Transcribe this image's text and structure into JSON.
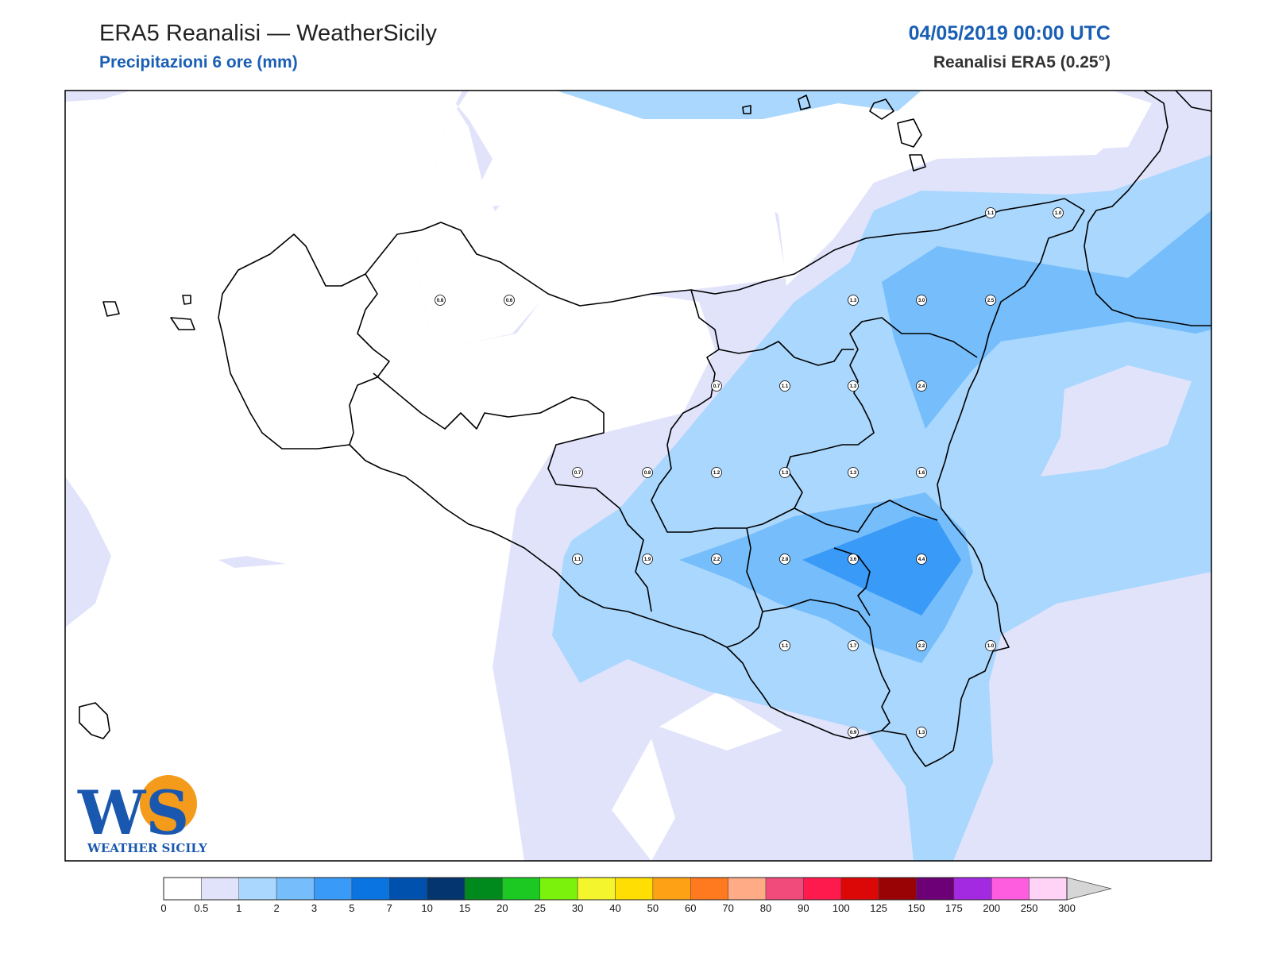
{
  "header": {
    "title": "ERA5 Reanalisi — WeatherSicily",
    "subtitle": "Precipitazioni 6 ore (mm)",
    "datetime": "04/05/2019 00:00 UTC",
    "source": "Reanalisi ERA5 (0.25°)"
  },
  "logo": {
    "text": "WEATHER SICILY",
    "letters": "WS"
  },
  "colors": {
    "accent": "#1a5fb4",
    "land_outline": "#000000"
  },
  "colorbar": {
    "labels": [
      "0",
      "0.5",
      "1",
      "2",
      "3",
      "5",
      "7",
      "10",
      "15",
      "20",
      "25",
      "30",
      "40",
      "50",
      "60",
      "70",
      "80",
      "90",
      "100",
      "125",
      "150",
      "175",
      "200",
      "250",
      "300"
    ],
    "colors": [
      "#ffffff",
      "#e1e3fb",
      "#aad7fd",
      "#76bdfb",
      "#3a9af7",
      "#0a74e0",
      "#0050ad",
      "#04356f",
      "#008a1e",
      "#1bc922",
      "#7bf20b",
      "#f4f52c",
      "#ffdf03",
      "#ffa114",
      "#ff7a1f",
      "#ffab86",
      "#f04b7a",
      "#ff1a4e",
      "#dc0707",
      "#9a0305",
      "#6e0077",
      "#a32ae0",
      "#ff5ddf",
      "#ffd3f5"
    ],
    "extend_color": "#d6d6d6"
  },
  "stations": [
    {
      "v": "0.8",
      "c": "l"
    },
    {
      "v": "0.6",
      "c": "l"
    },
    {
      "v": "1.1",
      "c": "l"
    },
    {
      "v": "1.0",
      "c": "l"
    },
    {
      "v": "1.3",
      "c": "l"
    },
    {
      "v": "3.0",
      "c": "m"
    },
    {
      "v": "2.5",
      "c": "m"
    },
    {
      "v": "0.7",
      "c": "l"
    },
    {
      "v": "1.1",
      "c": "l"
    },
    {
      "v": "1.3",
      "c": "l"
    },
    {
      "v": "2.4",
      "c": "m"
    },
    {
      "v": "0.7",
      "c": "l"
    },
    {
      "v": "0.8",
      "c": "l"
    },
    {
      "v": "1.2",
      "c": "l"
    },
    {
      "v": "1.3",
      "c": "l"
    },
    {
      "v": "1.3",
      "c": "l"
    },
    {
      "v": "1.6",
      "c": "l"
    },
    {
      "v": "1.1",
      "c": "l"
    },
    {
      "v": "1.9",
      "c": "l"
    },
    {
      "v": "2.2",
      "c": "m"
    },
    {
      "v": "2.8",
      "c": "m"
    },
    {
      "v": "3.6",
      "c": "d"
    },
    {
      "v": "4.4",
      "c": "d"
    },
    {
      "v": "1.1",
      "c": "l"
    },
    {
      "v": "1.7",
      "c": "l"
    },
    {
      "v": "2.2",
      "c": "m"
    },
    {
      "v": "1.0",
      "c": "l"
    },
    {
      "v": "0.9",
      "c": "l"
    },
    {
      "v": "1.3",
      "c": "l"
    }
  ]
}
